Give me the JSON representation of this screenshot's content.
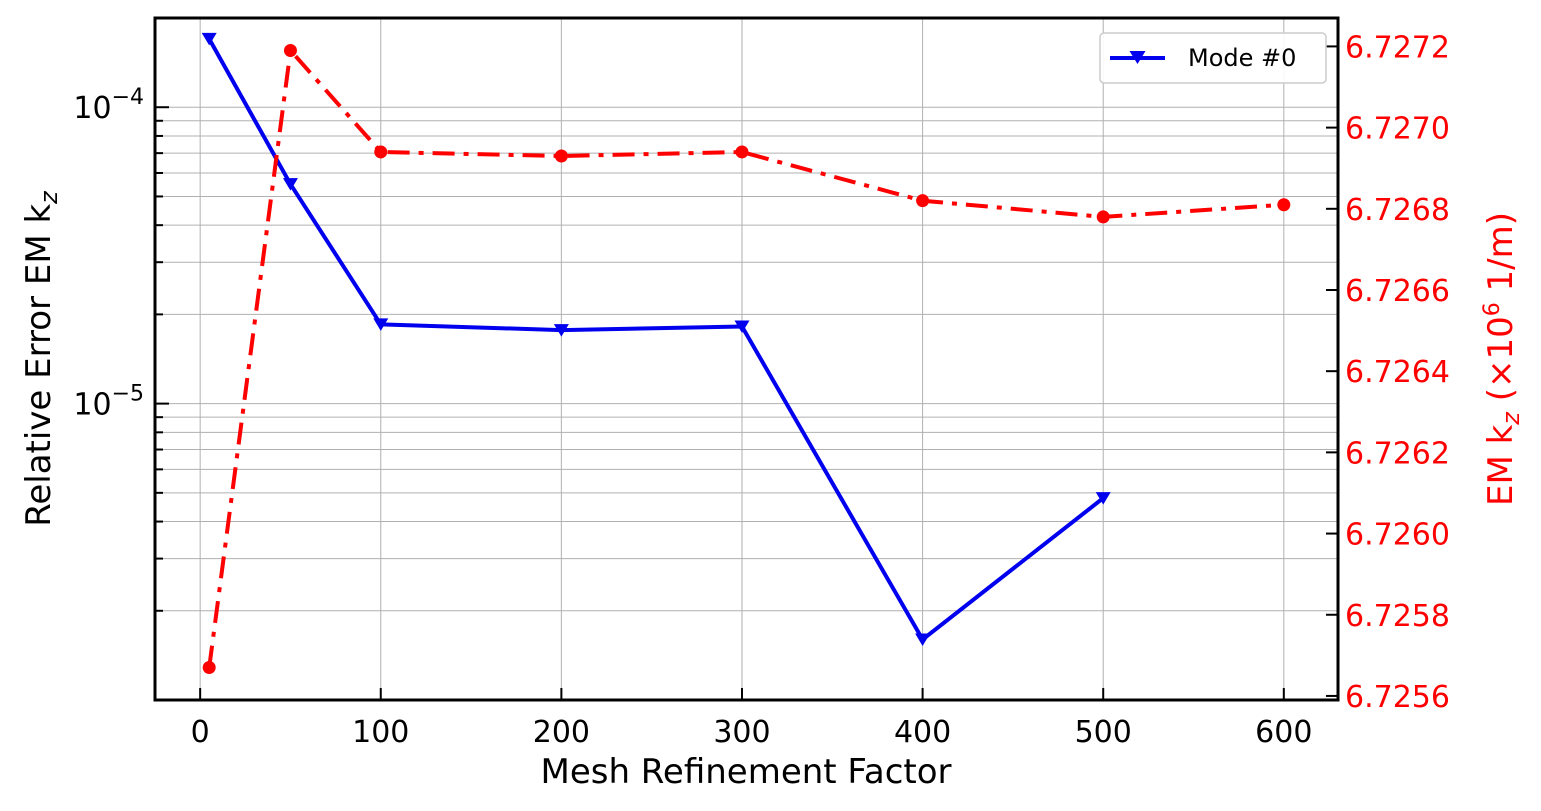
{
  "chart_data": {
    "type": "line",
    "xlabel": "Mesh Refinement Factor",
    "ylabel_left": "Relative Error EM k",
    "ylabel_left_sub": "z",
    "ylabel_right": "EM k",
    "ylabel_right_sub": "z",
    "ylabel_right_mid": " (×10",
    "ylabel_right_sup": "6",
    "ylabel_right_tail": " 1/m)",
    "xlim": [
      -25,
      630
    ],
    "x_ticks": [
      0,
      100,
      200,
      300,
      400,
      500,
      600
    ],
    "y_left_scale": "log",
    "y_left_lim": [
      1e-06,
      0.0002
    ],
    "y_left_ticks": [
      {
        "value": 0.0001,
        "base": "10",
        "exp": "−4"
      },
      {
        "value": 1e-05,
        "base": "10",
        "exp": "−5"
      }
    ],
    "y_right_lim": [
      6.72559,
      6.72727
    ],
    "y_right_ticks": [
      "6.7256",
      "6.7258",
      "6.7260",
      "6.7262",
      "6.7264",
      "6.7266",
      "6.7268",
      "6.7270",
      "6.7272"
    ],
    "grid": true,
    "legend_position": "top-right",
    "series": [
      {
        "name": "Mode #0",
        "axis": "left",
        "color": "#0000ee",
        "line_style": "solid",
        "marker": "triangle-down",
        "x": [
          5,
          50,
          100,
          200,
          300,
          400,
          500
        ],
        "values": [
          0.00017,
          5.5e-05,
          1.85e-05,
          1.77e-05,
          1.82e-05,
          1.6e-06,
          4.8e-06
        ]
      },
      {
        "axis": "right",
        "color": "#ff0000",
        "line_style": "dash-dot",
        "marker": "circle",
        "x": [
          5,
          50,
          100,
          200,
          300,
          400,
          500,
          600
        ],
        "values": [
          6.72567,
          6.72719,
          6.72694,
          6.72693,
          6.72694,
          6.72682,
          6.72678,
          6.72681
        ]
      }
    ]
  }
}
